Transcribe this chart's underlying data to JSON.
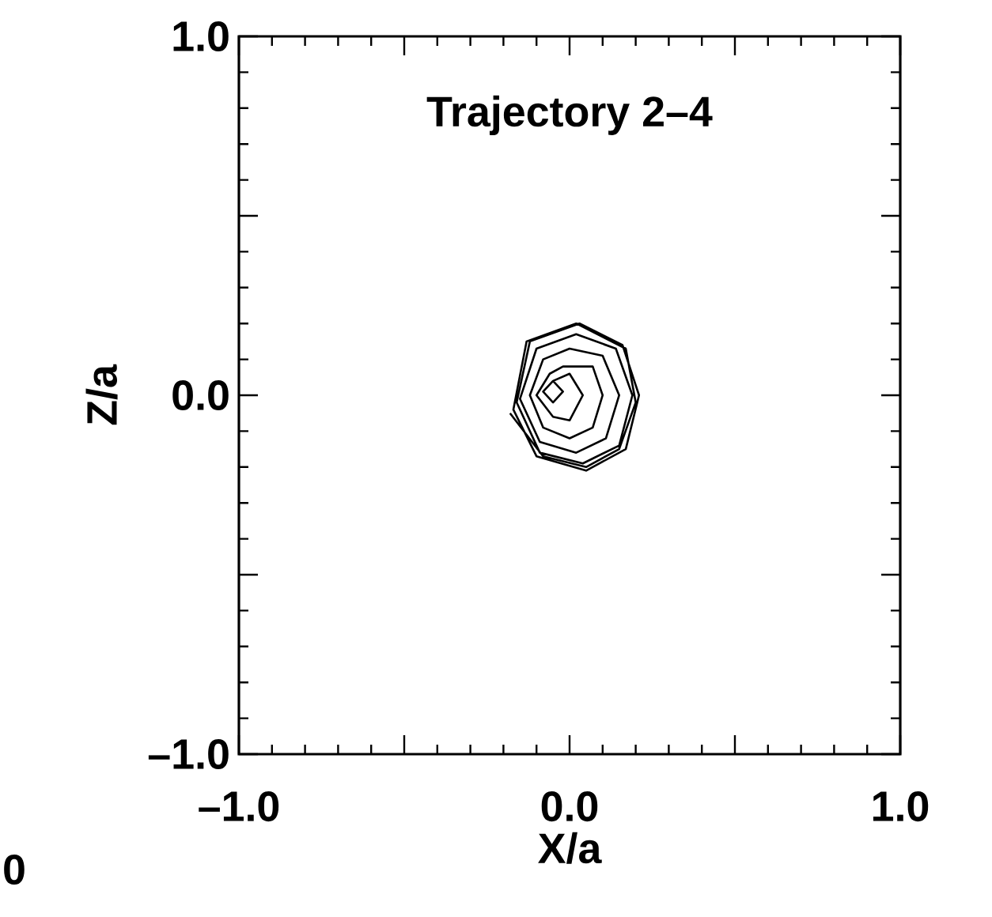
{
  "chart_data": {
    "type": "line",
    "title": "Trajectory 2–4",
    "xlabel": "X/a",
    "ylabel": "Z/a",
    "xlim": [
      -1.0,
      1.0
    ],
    "ylim": [
      -1.0,
      1.0
    ],
    "xticks": [
      {
        "value": -1.0,
        "label": "–1.0"
      },
      {
        "value": -0.5,
        "label": null
      },
      {
        "value": 0.0,
        "label": "0.0"
      },
      {
        "value": 0.5,
        "label": null
      },
      {
        "value": 1.0,
        "label": "1.0"
      }
    ],
    "yticks": [
      {
        "value": -1.0,
        "label": "–1.0"
      },
      {
        "value": -0.5,
        "label": null
      },
      {
        "value": 0.0,
        "label": "0.0"
      },
      {
        "value": 0.5,
        "label": null
      },
      {
        "value": 1.0,
        "label": "1.0"
      }
    ],
    "grid": false,
    "marker": "none",
    "line_style": "solid",
    "annotations": [
      "0"
    ],
    "series": [
      {
        "color": "#000000",
        "x": [
          -0.05,
          -0.02,
          -0.05,
          -0.08,
          -0.05,
          0.0,
          0.04,
          0.0,
          -0.05,
          -0.1,
          -0.06,
          -0.02,
          0.07,
          0.1,
          0.07,
          0.0,
          -0.08,
          -0.12,
          -0.08,
          0.0,
          0.1,
          0.15,
          0.11,
          0.02,
          -0.09,
          -0.15,
          -0.1,
          0.02,
          0.14,
          0.19,
          0.15,
          0.04,
          -0.09,
          -0.16,
          -0.12,
          0.03,
          0.16,
          0.21,
          0.17,
          0.05,
          -0.1,
          -0.17,
          -0.13,
          0.02,
          0.17,
          0.2,
          0.15,
          0.05,
          -0.08,
          -0.18
        ],
        "values": [
          0.04,
          0.01,
          -0.02,
          0.01,
          0.04,
          0.06,
          0.0,
          -0.07,
          -0.06,
          0.0,
          0.06,
          0.08,
          0.08,
          0.0,
          -0.09,
          -0.12,
          -0.09,
          0.0,
          0.1,
          0.13,
          0.11,
          0.0,
          -0.12,
          -0.16,
          -0.13,
          -0.01,
          0.13,
          0.17,
          0.13,
          0.0,
          -0.14,
          -0.19,
          -0.16,
          -0.02,
          0.15,
          0.2,
          0.14,
          0.0,
          -0.15,
          -0.21,
          -0.17,
          -0.04,
          0.15,
          0.2,
          0.13,
          -0.02,
          -0.15,
          -0.2,
          -0.17,
          -0.05
        ]
      }
    ]
  }
}
